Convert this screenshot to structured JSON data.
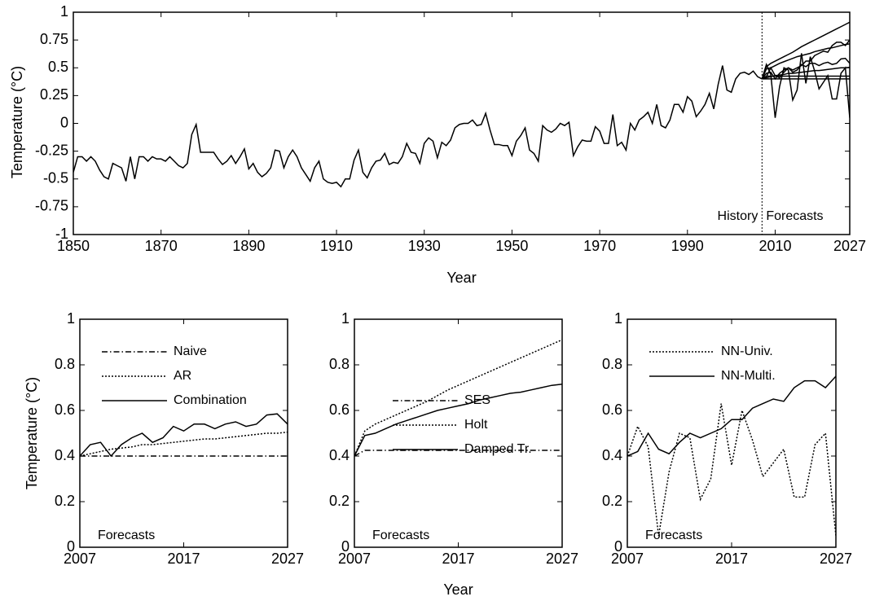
{
  "chart_data": [
    {
      "type": "line",
      "xlabel": "Year",
      "ylabel": "Temperature (°C)",
      "annotations": [
        "History",
        "Forecasts"
      ],
      "x": [
        1850,
        1851,
        1852,
        1853,
        1854,
        1855,
        1856,
        1857,
        1858,
        1859,
        1860,
        1861,
        1862,
        1863,
        1864,
        1865,
        1866,
        1867,
        1868,
        1869,
        1870,
        1871,
        1872,
        1873,
        1874,
        1875,
        1876,
        1877,
        1878,
        1879,
        1880,
        1881,
        1882,
        1883,
        1884,
        1885,
        1886,
        1887,
        1888,
        1889,
        1890,
        1891,
        1892,
        1893,
        1894,
        1895,
        1896,
        1897,
        1898,
        1899,
        1900,
        1901,
        1902,
        1903,
        1904,
        1905,
        1906,
        1907,
        1908,
        1909,
        1910,
        1911,
        1912,
        1913,
        1914,
        1915,
        1916,
        1917,
        1918,
        1919,
        1920,
        1921,
        1922,
        1923,
        1924,
        1925,
        1926,
        1927,
        1928,
        1929,
        1930,
        1931,
        1932,
        1933,
        1934,
        1935,
        1936,
        1937,
        1938,
        1939,
        1940,
        1941,
        1942,
        1943,
        1944,
        1945,
        1946,
        1947,
        1948,
        1949,
        1950,
        1951,
        1952,
        1953,
        1954,
        1955,
        1956,
        1957,
        1958,
        1959,
        1960,
        1961,
        1962,
        1963,
        1964,
        1965,
        1966,
        1967,
        1968,
        1969,
        1970,
        1971,
        1972,
        1973,
        1974,
        1975,
        1976,
        1977,
        1978,
        1979,
        1980,
        1981,
        1982,
        1983,
        1984,
        1985,
        1986,
        1987,
        1988,
        1989,
        1990,
        1991,
        1992,
        1993,
        1994,
        1995,
        1996,
        1997,
        1998,
        1999,
        2000,
        2001,
        2002,
        2003,
        2004,
        2005,
        2006,
        2007
      ],
      "series": [
        {
          "color": "#000000",
          "style": "solid",
          "values": [
            -0.44,
            -0.3,
            -0.3,
            -0.34,
            -0.3,
            -0.34,
            -0.42,
            -0.48,
            -0.5,
            -0.36,
            -0.38,
            -0.4,
            -0.52,
            -0.3,
            -0.5,
            -0.3,
            -0.3,
            -0.34,
            -0.3,
            -0.32,
            -0.32,
            -0.34,
            -0.3,
            -0.34,
            -0.38,
            -0.4,
            -0.36,
            -0.1,
            -0.01,
            -0.26,
            -0.26,
            -0.26,
            -0.26,
            -0.32,
            -0.37,
            -0.34,
            -0.29,
            -0.36,
            -0.3,
            -0.23,
            -0.41,
            -0.36,
            -0.44,
            -0.48,
            -0.45,
            -0.4,
            -0.24,
            -0.25,
            -0.4,
            -0.3,
            -0.24,
            -0.3,
            -0.4,
            -0.46,
            -0.52,
            -0.4,
            -0.34,
            -0.5,
            -0.53,
            -0.54,
            -0.53,
            -0.57,
            -0.5,
            -0.5,
            -0.33,
            -0.24,
            -0.44,
            -0.49,
            -0.4,
            -0.34,
            -0.33,
            -0.27,
            -0.37,
            -0.35,
            -0.36,
            -0.3,
            -0.18,
            -0.26,
            -0.27,
            -0.36,
            -0.18,
            -0.13,
            -0.16,
            -0.31,
            -0.17,
            -0.2,
            -0.15,
            -0.04,
            -0.01,
            0.0,
            0.0,
            0.03,
            -0.02,
            -0.01,
            0.09,
            -0.06,
            -0.19,
            -0.19,
            -0.2,
            -0.2,
            -0.29,
            -0.16,
            -0.11,
            -0.04,
            -0.24,
            -0.27,
            -0.34,
            -0.02,
            -0.06,
            -0.08,
            -0.05,
            0.0,
            -0.02,
            0.01,
            -0.29,
            -0.21,
            -0.15,
            -0.16,
            -0.16,
            -0.03,
            -0.07,
            -0.18,
            -0.18,
            0.08,
            -0.2,
            -0.17,
            -0.24,
            0.0,
            -0.06,
            0.03,
            0.06,
            0.1,
            0.0,
            0.17,
            -0.02,
            -0.04,
            0.03,
            0.17,
            0.17,
            0.1,
            0.24,
            0.2,
            0.06,
            0.11,
            0.17,
            0.27,
            0.13,
            0.35,
            0.52,
            0.3,
            0.28,
            0.4,
            0.45,
            0.46,
            0.44,
            0.47,
            0.42,
            0.4
          ]
        }
      ],
      "xlim": [
        1850,
        2027
      ],
      "xticks": [
        1850,
        1870,
        1890,
        1910,
        1930,
        1950,
        1970,
        1990,
        2010,
        2027
      ],
      "ylim": [
        -1,
        1
      ],
      "yticks": [
        -1,
        -0.75,
        -0.5,
        -0.25,
        0,
        0.25,
        0.5,
        0.75,
        1
      ]
    },
    {
      "type": "line",
      "ylabel": "Temperature (°C)",
      "annotations": [
        "Forecasts"
      ],
      "legend": "upper left",
      "x": [
        2007,
        2008,
        2009,
        2010,
        2011,
        2012,
        2013,
        2014,
        2015,
        2016,
        2017,
        2018,
        2019,
        2020,
        2021,
        2022,
        2023,
        2024,
        2025,
        2026,
        2027
      ],
      "series": [
        {
          "name": "Naive",
          "color": "#000000",
          "style": "dashdot",
          "values": [
            0.4,
            0.4,
            0.4,
            0.4,
            0.4,
            0.4,
            0.4,
            0.4,
            0.4,
            0.4,
            0.4,
            0.4,
            0.4,
            0.4,
            0.4,
            0.4,
            0.4,
            0.4,
            0.4,
            0.4,
            0.4
          ]
        },
        {
          "name": "AR",
          "color": "#000000",
          "style": "dotted",
          "values": [
            0.4,
            0.41,
            0.42,
            0.43,
            0.435,
            0.44,
            0.45,
            0.45,
            0.455,
            0.46,
            0.465,
            0.47,
            0.475,
            0.475,
            0.48,
            0.485,
            0.49,
            0.495,
            0.5,
            0.5,
            0.505
          ]
        },
        {
          "name": "Combination",
          "color": "#000000",
          "style": "solid",
          "values": [
            0.4,
            0.45,
            0.46,
            0.4,
            0.45,
            0.48,
            0.5,
            0.46,
            0.48,
            0.53,
            0.51,
            0.54,
            0.54,
            0.52,
            0.54,
            0.55,
            0.53,
            0.54,
            0.58,
            0.585,
            0.54
          ]
        }
      ],
      "xlim": [
        2007,
        2027
      ],
      "xticks": [
        2007,
        2017,
        2027
      ],
      "ylim": [
        0,
        1
      ],
      "yticks": [
        0,
        0.2,
        0.4,
        0.6,
        0.8,
        1
      ]
    },
    {
      "type": "line",
      "xlabel": "Year",
      "annotations": [
        "Forecasts"
      ],
      "legend": "lower left",
      "x": [
        2007,
        2008,
        2009,
        2010,
        2011,
        2012,
        2013,
        2014,
        2015,
        2016,
        2017,
        2018,
        2019,
        2020,
        2021,
        2022,
        2023,
        2024,
        2025,
        2026,
        2027
      ],
      "series": [
        {
          "name": "SES",
          "color": "#000000",
          "style": "dashdot",
          "values": [
            0.4,
            0.425,
            0.425,
            0.425,
            0.425,
            0.425,
            0.425,
            0.425,
            0.425,
            0.425,
            0.425,
            0.425,
            0.425,
            0.425,
            0.425,
            0.425,
            0.425,
            0.425,
            0.425,
            0.425,
            0.425
          ]
        },
        {
          "name": "Holt",
          "color": "#000000",
          "style": "dotted",
          "values": [
            0.4,
            0.51,
            0.54,
            0.56,
            0.58,
            0.6,
            0.62,
            0.64,
            0.665,
            0.69,
            0.71,
            0.73,
            0.75,
            0.77,
            0.79,
            0.81,
            0.83,
            0.85,
            0.87,
            0.89,
            0.91
          ]
        },
        {
          "name": "Damped Tr.",
          "color": "#000000",
          "style": "solid",
          "values": [
            0.4,
            0.49,
            0.5,
            0.52,
            0.54,
            0.555,
            0.57,
            0.585,
            0.6,
            0.61,
            0.62,
            0.63,
            0.645,
            0.655,
            0.665,
            0.675,
            0.68,
            0.69,
            0.7,
            0.71,
            0.715
          ]
        }
      ],
      "xlim": [
        2007,
        2027
      ],
      "xticks": [
        2007,
        2017,
        2027
      ],
      "ylim": [
        0,
        1
      ],
      "yticks": [
        0,
        0.2,
        0.4,
        0.6,
        0.8,
        1
      ]
    },
    {
      "type": "line",
      "annotations": [
        "Forecasts"
      ],
      "legend": "upper left",
      "x": [
        2007,
        2008,
        2009,
        2010,
        2011,
        2012,
        2013,
        2014,
        2015,
        2016,
        2017,
        2018,
        2019,
        2020,
        2021,
        2022,
        2023,
        2024,
        2025,
        2026,
        2027
      ],
      "series": [
        {
          "name": "NN-Univ.",
          "color": "#000000",
          "style": "dotted",
          "values": [
            0.4,
            0.53,
            0.44,
            0.05,
            0.33,
            0.5,
            0.48,
            0.21,
            0.3,
            0.63,
            0.36,
            0.6,
            0.47,
            0.31,
            0.37,
            0.43,
            0.22,
            0.22,
            0.45,
            0.5,
            0.05
          ]
        },
        {
          "name": "NN-Multi.",
          "color": "#000000",
          "style": "solid",
          "values": [
            0.4,
            0.42,
            0.5,
            0.43,
            0.41,
            0.46,
            0.5,
            0.48,
            0.5,
            0.52,
            0.56,
            0.56,
            0.61,
            0.63,
            0.65,
            0.64,
            0.7,
            0.73,
            0.73,
            0.7,
            0.75
          ]
        }
      ],
      "xlim": [
        2007,
        2027
      ],
      "xticks": [
        2007,
        2017,
        2027
      ],
      "ylim": [
        0,
        1
      ],
      "yticks": [
        0,
        0.2,
        0.4,
        0.6,
        0.8,
        1
      ]
    }
  ]
}
